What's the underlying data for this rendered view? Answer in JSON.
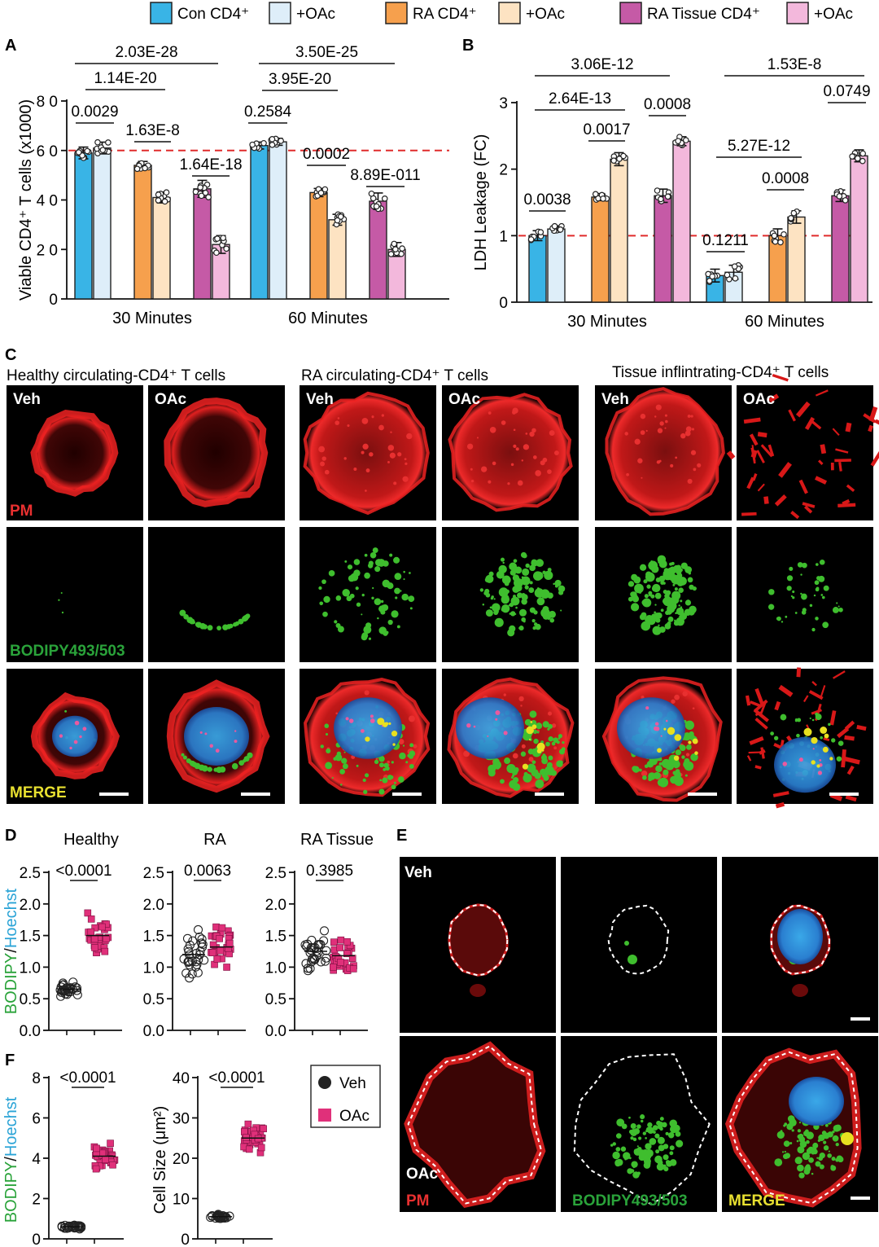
{
  "legend": [
    {
      "name": "Con CD4⁺",
      "color": "#39b4e6"
    },
    {
      "name": "+OAc",
      "color": "#deeef9"
    },
    {
      "name": "RA CD4⁺",
      "color": "#f6a04d"
    },
    {
      "name": "+OAc",
      "color": "#fde3c2"
    },
    {
      "name": "RA Tissue CD4⁺",
      "color": "#c55aa6"
    },
    {
      "name": "+OAc",
      "color": "#f3b8dc"
    }
  ],
  "colors": {
    "con": "#39b4e6",
    "con_oac": "#deeef9",
    "ra": "#f6a04d",
    "ra_oac": "#fde3c2",
    "tissue": "#c55aa6",
    "tissue_oac": "#f3b8dc",
    "refline": "#e02b2b",
    "oac_marker": "#e0307a"
  },
  "panels": {
    "A": {
      "letter": "A"
    },
    "B": {
      "letter": "B"
    },
    "C": {
      "letter": "C"
    },
    "D": {
      "letter": "D"
    },
    "E": {
      "letter": "E"
    },
    "F": {
      "letter": "F"
    }
  },
  "chart_data": [
    {
      "id": "A",
      "type": "bar",
      "ylabel": "Viable CD4⁺ T cells (x1000)",
      "ylim": [
        0,
        80
      ],
      "yticks": [
        "0",
        "2 0",
        "4 0",
        "6 0",
        "8 0"
      ],
      "reference_line": 60,
      "groups": [
        "30 Minutes",
        "60 Minutes"
      ],
      "series": [
        {
          "name": "Con CD4⁺",
          "values": [
            59,
            62
          ]
        },
        {
          "name": "+OAc",
          "values": [
            61,
            63.5
          ]
        },
        {
          "name": "RA CD4⁺",
          "values": [
            54,
            43
          ]
        },
        {
          "name": "+OAc",
          "values": [
            41,
            32
          ]
        },
        {
          "name": "RA Tissue CD4⁺",
          "values": [
            44.5,
            39.5
          ]
        },
        {
          "name": "+OAc",
          "values": [
            22,
            20
          ]
        }
      ],
      "annotations": [
        "0.0029",
        "1.63E-8",
        "1.64E-18",
        "1.14E-20",
        "2.03E-28",
        "0.2584",
        "0.0002",
        "8.89E-011",
        "3.95E-20",
        "3.50E-25"
      ]
    },
    {
      "id": "B",
      "type": "bar",
      "ylabel": "LDH Leakage (FC)",
      "ylim": [
        0,
        3
      ],
      "yticks": [
        "0",
        "1",
        "2",
        "3"
      ],
      "reference_line": 1,
      "groups": [
        "30 Minutes",
        "60 Minutes"
      ],
      "series": [
        {
          "name": "Con CD4⁺",
          "values": [
            1.0,
            0.4
          ]
        },
        {
          "name": "+OAc",
          "values": [
            1.1,
            0.45
          ]
        },
        {
          "name": "RA CD4⁺",
          "values": [
            1.58,
            1.0
          ]
        },
        {
          "name": "+OAc",
          "values": [
            2.15,
            1.28
          ]
        },
        {
          "name": "RA Tissue CD4⁺",
          "values": [
            1.6,
            1.6
          ]
        },
        {
          "name": "+OAc",
          "values": [
            2.42,
            2.2
          ]
        }
      ],
      "annotations": [
        "0.0038",
        "0.0017",
        "0.0008",
        "2.64E-13",
        "3.06E-12",
        "0.1211",
        "0.0008",
        "0.0749",
        "5.27E-12",
        "1.53E-8"
      ]
    },
    {
      "id": "D",
      "type": "scatter",
      "ylabel_parts": [
        "BODIPY",
        "/",
        "Hoechst"
      ],
      "ylim": [
        0,
        2.5
      ],
      "yticks": [
        "0.0",
        "0.5",
        "1.0",
        "1.5",
        "2.0",
        "2.5"
      ],
      "subplots": [
        {
          "title": "Healthy",
          "p": "<0.0001",
          "veh_mean": 0.65,
          "oac_mean": 1.5
        },
        {
          "title": "RA",
          "p": "0.0063",
          "veh_mean": 1.2,
          "oac_mean": 1.32
        },
        {
          "title": "RA Tissue",
          "p": "0.3985",
          "veh_mean": 1.25,
          "oac_mean": 1.18
        }
      ]
    },
    {
      "id": "F",
      "type": "scatter",
      "subplots": [
        {
          "ylabel_parts": [
            "BODIPY",
            "/",
            "Hoechst"
          ],
          "ylim": [
            0,
            8
          ],
          "yticks": [
            "0",
            "2",
            "4",
            "6",
            "8"
          ],
          "p": "<0.0001",
          "veh_mean": 0.6,
          "oac_mean": 4.1
        },
        {
          "ylabel": "Cell Size (μm²)",
          "ylim": [
            0,
            40
          ],
          "yticks": [
            "0",
            "10",
            "20",
            "30",
            "40"
          ],
          "p": "<0.0001",
          "veh_mean": 5.5,
          "oac_mean": 25
        }
      ],
      "legend": [
        "Veh",
        "OAc"
      ]
    }
  ],
  "panel_c": {
    "groups": [
      "Healthy circulating-CD4⁺ T cells",
      "RA circulating-CD4⁺ T cells",
      "Tissue inflintrating-CD4⁺ T cells"
    ],
    "columns": [
      "Veh",
      "OAc"
    ],
    "rows": [
      "PM",
      "BODIPY493/503",
      "MERGE"
    ]
  },
  "panel_e": {
    "rows": [
      "Veh",
      "OAc"
    ],
    "channels": [
      "PM",
      "BODIPY493/503",
      "MERGE"
    ]
  }
}
